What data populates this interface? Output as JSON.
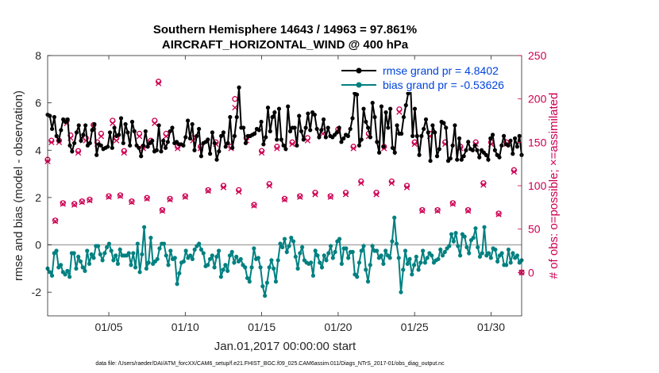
{
  "chart_data": {
    "type": "line",
    "title": "Southern Hemisphere 14643 / 14963 = 97.861%",
    "subtitle": "AIRCRAFT_HORIZONTAL_WIND @ 400 hPa",
    "xlabel": "Jan.01,2017 00:00:00 start",
    "ylabel": "rmse and bias (model - observation)",
    "ylabel_right": "# of obs: o=possible; ×=assimilated",
    "footnote": "data file: /Users/raeder/DAI/ATM_forcXX/CAM6_setup/f.e21.FHIST_BGC.f09_025.CAM6assim.011/Diags_NTrS_2017-01/obs_diag_output.nc",
    "xlim": [
      1,
      32
    ],
    "ylim": [
      -3,
      8
    ],
    "ylim_right": [
      -50,
      250
    ],
    "xticks": [
      5,
      10,
      15,
      20,
      25,
      30
    ],
    "xtick_labels": [
      "01/05",
      "01/10",
      "01/15",
      "01/20",
      "01/25",
      "01/30"
    ],
    "yticks": [
      -2,
      0,
      2,
      4,
      6,
      8
    ],
    "ytick_labels": [
      "-2",
      "0",
      "2",
      "4",
      "6",
      "8"
    ],
    "yticks_right": [
      0,
      50,
      100,
      150,
      200,
      250
    ],
    "ytick_labels_right": [
      "0",
      "50",
      "100",
      "150",
      "200",
      "250"
    ],
    "legend_position": "top-right",
    "colors": {
      "rmse": "#000000",
      "bias": "#008080",
      "counts": "#cc0052",
      "zero": "#aaaaaa",
      "legend_text": "#0044dd"
    },
    "series": [
      {
        "name": "rmse grand pr = 4.8402",
        "values": [
          5.5,
          5.45,
          4.9,
          5.4,
          4.6,
          4.4,
          4.85,
          5.3,
          5.2,
          5.3,
          4.2,
          3.95,
          4.3,
          4.75,
          5.05,
          4.4,
          4.65,
          5.05,
          4.2,
          4.3,
          4.85,
          5.1,
          3.8,
          4.25,
          4.2,
          4.05,
          4.1,
          4.15,
          4.75,
          4.1,
          4.95,
          4.6,
          4.65,
          5.35,
          4.3,
          5.1,
          4.75,
          4.2,
          5.2,
          4.8,
          4.2,
          4.1,
          3.75,
          4.2,
          4.8,
          4.15,
          4.3,
          4.4,
          3.95,
          4.0,
          5.05,
          3.95,
          4.4,
          4.1,
          4.35,
          4.8,
          4.95,
          4.3,
          4.35,
          4.25,
          4.25,
          4.2,
          4.55,
          5.25,
          4.5,
          5.1,
          4.0,
          4.6,
          4.9,
          3.75,
          4.3,
          4.35,
          4.45,
          3.85,
          4.75,
          4.3,
          3.6,
          3.95,
          4.6,
          4.75,
          4.15,
          4.3,
          5.4,
          4.1,
          4.6,
          5.4,
          6.65,
          4.95,
          4.95,
          4.3,
          4.6,
          4.6,
          4.65,
          4.7,
          4.9,
          4.85,
          5.2,
          4.25,
          4.55,
          5.8,
          4.8,
          5.4,
          5.6,
          4.45,
          5.75,
          4.45,
          4.2,
          4.05,
          5.85,
          4.8,
          4.95,
          4.95,
          4.2,
          5.45,
          4.8,
          4.45,
          4.95,
          5.55,
          4.85,
          5.6,
          5.5,
          4.9,
          4.55,
          4.85,
          5.3,
          4.55,
          4.95,
          4.6,
          4.55,
          4.65,
          4.75,
          4.95,
          4.35,
          4.5,
          4.65,
          4.6,
          4.9,
          5.35,
          6.4,
          6.35,
          4.2,
          4.45,
          5.75,
          5.2,
          4.95,
          4.55,
          6.0,
          5.4,
          4.35,
          3.9,
          5.85,
          4.15,
          5.6,
          4.95,
          5.75,
          4.1,
          3.9,
          5.05,
          4.7,
          4.7,
          5.4,
          5.9,
          6.4,
          6.85,
          4.6,
          5.75,
          4.6,
          3.8,
          4.6,
          4.9,
          5.3,
          4.75,
          3.55,
          5.05,
          4.75,
          3.75,
          4.05,
          5.2,
          5.15,
          4.95,
          3.55,
          3.65,
          4.2,
          5.05,
          3.6,
          4.5,
          3.6,
          3.75,
          4.0,
          4.35,
          4.05,
          4.0,
          4.2,
          4.0,
          3.7,
          4.0,
          3.9,
          3.8,
          3.6,
          4.5,
          4.65,
          4.0,
          3.8,
          3.7,
          4.2,
          4.6,
          4.25,
          4.2,
          4.4,
          3.85,
          4.5,
          4.15,
          4.6,
          3.8
        ]
      },
      {
        "name": "bias grand pr = -0.53626",
        "values": [
          -1.0,
          -1.15,
          -1.3,
          -0.35,
          -0.25,
          -0.95,
          -0.85,
          -1.15,
          -1.25,
          -1.1,
          -1.35,
          -0.35,
          -0.35,
          -1.0,
          -0.5,
          -0.7,
          -0.95,
          -1.1,
          -0.25,
          -0.8,
          -0.4,
          -0.55,
          -0.05,
          -0.05,
          -0.4,
          -0.65,
          -0.35,
          -0.1,
          0.05,
          -0.25,
          -0.65,
          -0.45,
          -0.8,
          -0.2,
          -0.45,
          -0.45,
          -0.45,
          -0.35,
          -0.85,
          -0.35,
          -0.95,
          0.05,
          -1.15,
          -0.4,
          0.75,
          -1.0,
          -0.75,
          0.3,
          -0.8,
          -0.7,
          -0.6,
          -0.15,
          0.05,
          0.05,
          -0.45,
          -0.85,
          -0.25,
          -0.6,
          -0.55,
          -1.65,
          -1.2,
          -0.75,
          -0.7,
          -0.25,
          -0.55,
          -0.45,
          -0.6,
          -0.2,
          -0.05,
          0.05,
          -0.2,
          -0.35,
          -0.9,
          -0.85,
          -0.6,
          -0.45,
          -0.95,
          -0.5,
          -0.25,
          -1.35,
          -1.05,
          -0.85,
          -1.1,
          -0.45,
          -0.3,
          -0.75,
          -0.5,
          -0.7,
          -0.6,
          -0.85,
          -0.95,
          -1.4,
          -1.55,
          -0.95,
          -0.15,
          -0.6,
          -0.55,
          -0.95,
          -1.75,
          -2.15,
          -1.6,
          -0.95,
          -0.65,
          -1.0,
          -1.55,
          -0.65,
          0.05,
          -0.1,
          0.25,
          -0.3,
          -0.05,
          0.3,
          0.15,
          -0.5,
          -1.0,
          -0.35,
          -0.1,
          -0.65,
          -0.75,
          -0.8,
          -0.75,
          -1.3,
          -0.25,
          -0.45,
          -0.75,
          -0.95,
          -0.45,
          -0.65,
          -0.35,
          -0.05,
          -0.55,
          -0.3,
          0.15,
          0.25,
          -0.8,
          -0.15,
          -0.15,
          -0.55,
          -0.3,
          -0.3,
          -1.25,
          -1.35,
          -0.75,
          -0.25,
          -0.05,
          -1.05,
          -1.55,
          -0.85,
          -0.05,
          -0.25,
          -0.25,
          -0.55,
          -0.45,
          -0.8,
          -0.25,
          -0.45,
          -0.55,
          0.15,
          1.15,
          0.05,
          -0.55,
          -2.0,
          -1.05,
          -0.25,
          -0.8,
          -0.6,
          -1.25,
          -0.85,
          -0.5,
          -1.05,
          -0.75,
          -0.25,
          -0.75,
          -0.55,
          -0.35,
          -0.45,
          -0.75,
          -0.65,
          -0.6,
          -0.2,
          -0.45,
          -0.3,
          -0.15,
          -0.05,
          0.45,
          0.15,
          0.5,
          -0.05,
          -0.45,
          0.45,
          0.35,
          -0.1,
          -0.35,
          0.2,
          0.3,
          0.7,
          -0.1,
          -0.5,
          -0.35,
          0.75,
          -0.45,
          -0.35,
          -0.55,
          -0.15,
          -0.2,
          -0.7,
          -0.45,
          -0.35,
          -0.85,
          -0.85,
          -0.2,
          -0.75,
          -0.35,
          -0.55,
          -0.45,
          -0.75,
          -0.65
        ]
      }
    ],
    "counts": [
      {
        "t": 1.0,
        "possible": 130,
        "assimilated": 128
      },
      {
        "t": 1.25,
        "possible": 152,
        "assimilated": 150
      },
      {
        "t": 1.5,
        "possible": 60,
        "assimilated": 59
      },
      {
        "t": 1.75,
        "possible": 152,
        "assimilated": 150
      },
      {
        "t": 2.0,
        "possible": 80,
        "assimilated": 79
      },
      {
        "t": 2.25,
        "possible": 175,
        "assimilated": 172
      },
      {
        "t": 2.5,
        "possible": 158,
        "assimilated": 155
      },
      {
        "t": 2.75,
        "possible": 79,
        "assimilated": 78
      },
      {
        "t": 3.0,
        "possible": 140,
        "assimilated": 138
      },
      {
        "t": 3.25,
        "possible": 82,
        "assimilated": 81
      },
      {
        "t": 3.5,
        "possible": 155,
        "assimilated": 152
      },
      {
        "t": 3.75,
        "possible": 84,
        "assimilated": 83
      },
      {
        "t": 4.0,
        "possible": 170,
        "assimilated": 168
      },
      {
        "t": 4.25,
        "possible": 150,
        "assimilated": 148
      },
      {
        "t": 4.5,
        "possible": 160,
        "assimilated": 157
      },
      {
        "t": 5.0,
        "possible": 88,
        "assimilated": 87
      },
      {
        "t": 5.25,
        "possible": 175,
        "assimilated": 172
      },
      {
        "t": 5.5,
        "possible": 155,
        "assimilated": 152
      },
      {
        "t": 5.75,
        "possible": 89,
        "assimilated": 88
      },
      {
        "t": 6.0,
        "possible": 140,
        "assimilated": 138
      },
      {
        "t": 6.5,
        "possible": 82,
        "assimilated": 81
      },
      {
        "t": 7.0,
        "possible": 160,
        "assimilated": 157
      },
      {
        "t": 7.25,
        "possible": 145,
        "assimilated": 143
      },
      {
        "t": 7.5,
        "possible": 86,
        "assimilated": 85
      },
      {
        "t": 7.75,
        "possible": 152,
        "assimilated": 150
      },
      {
        "t": 8.0,
        "possible": 175,
        "assimilated": 172
      },
      {
        "t": 8.25,
        "possible": 220,
        "assimilated": 218
      },
      {
        "t": 8.5,
        "possible": 72,
        "assimilated": 71
      },
      {
        "t": 8.75,
        "possible": 160,
        "assimilated": 157
      },
      {
        "t": 9.0,
        "possible": 85,
        "assimilated": 84
      },
      {
        "t": 9.5,
        "possible": 145,
        "assimilated": 143
      },
      {
        "t": 10.0,
        "possible": 88,
        "assimilated": 87
      },
      {
        "t": 10.5,
        "possible": 155,
        "assimilated": 152
      },
      {
        "t": 11.0,
        "possible": 145,
        "assimilated": 143
      },
      {
        "t": 11.5,
        "possible": 95,
        "assimilated": 94
      },
      {
        "t": 12.0,
        "possible": 150,
        "assimilated": 148
      },
      {
        "t": 12.5,
        "possible": 100,
        "assimilated": 98
      },
      {
        "t": 13.0,
        "possible": 145,
        "assimilated": 143
      },
      {
        "t": 13.25,
        "possible": 200,
        "assimilated": 190
      },
      {
        "t": 13.5,
        "possible": 95,
        "assimilated": 93
      },
      {
        "t": 14.0,
        "possible": 155,
        "assimilated": 152
      },
      {
        "t": 14.5,
        "possible": 78,
        "assimilated": 77
      },
      {
        "t": 15.0,
        "possible": 140,
        "assimilated": 138
      },
      {
        "t": 15.5,
        "possible": 102,
        "assimilated": 100
      },
      {
        "t": 16.0,
        "possible": 145,
        "assimilated": 143
      },
      {
        "t": 16.5,
        "possible": 85,
        "assimilated": 84
      },
      {
        "t": 17.0,
        "possible": 150,
        "assimilated": 148
      },
      {
        "t": 17.5,
        "possible": 88,
        "assimilated": 87
      },
      {
        "t": 18.0,
        "possible": 155,
        "assimilated": 152
      },
      {
        "t": 18.5,
        "possible": 92,
        "assimilated": 90
      },
      {
        "t": 19.0,
        "possible": 163,
        "assimilated": 160
      },
      {
        "t": 19.5,
        "possible": 88,
        "assimilated": 87
      },
      {
        "t": 20.0,
        "possible": 165,
        "assimilated": 162
      },
      {
        "t": 20.5,
        "possible": 92,
        "assimilated": 90
      },
      {
        "t": 21.0,
        "possible": 145,
        "assimilated": 143
      },
      {
        "t": 21.5,
        "possible": 105,
        "assimilated": 103
      },
      {
        "t": 22.0,
        "possible": 160,
        "assimilated": 157
      },
      {
        "t": 22.5,
        "possible": 92,
        "assimilated": 90
      },
      {
        "t": 23.0,
        "possible": 145,
        "assimilated": 143
      },
      {
        "t": 23.5,
        "possible": 105,
        "assimilated": 103
      },
      {
        "t": 24.0,
        "possible": 188,
        "assimilated": 185
      },
      {
        "t": 24.5,
        "possible": 100,
        "assimilated": 98
      },
      {
        "t": 25.0,
        "possible": 150,
        "assimilated": 148
      },
      {
        "t": 25.5,
        "possible": 72,
        "assimilated": 71
      },
      {
        "t": 26.0,
        "possible": 160,
        "assimilated": 157
      },
      {
        "t": 26.5,
        "possible": 72,
        "assimilated": 71
      },
      {
        "t": 27.0,
        "possible": 150,
        "assimilated": 148
      },
      {
        "t": 27.5,
        "possible": 80,
        "assimilated": 79
      },
      {
        "t": 28.0,
        "possible": 145,
        "assimilated": 143
      },
      {
        "t": 28.5,
        "possible": 72,
        "assimilated": 71
      },
      {
        "t": 29.0,
        "possible": 150,
        "assimilated": 148
      },
      {
        "t": 29.5,
        "possible": 103,
        "assimilated": 101
      },
      {
        "t": 30.0,
        "possible": 150,
        "assimilated": 148
      },
      {
        "t": 30.5,
        "possible": 68,
        "assimilated": 67
      },
      {
        "t": 31.0,
        "possible": 150,
        "assimilated": 148
      },
      {
        "t": 31.5,
        "possible": 118,
        "assimilated": 116
      },
      {
        "t": 32.0,
        "possible": 0,
        "assimilated": 0
      }
    ]
  }
}
